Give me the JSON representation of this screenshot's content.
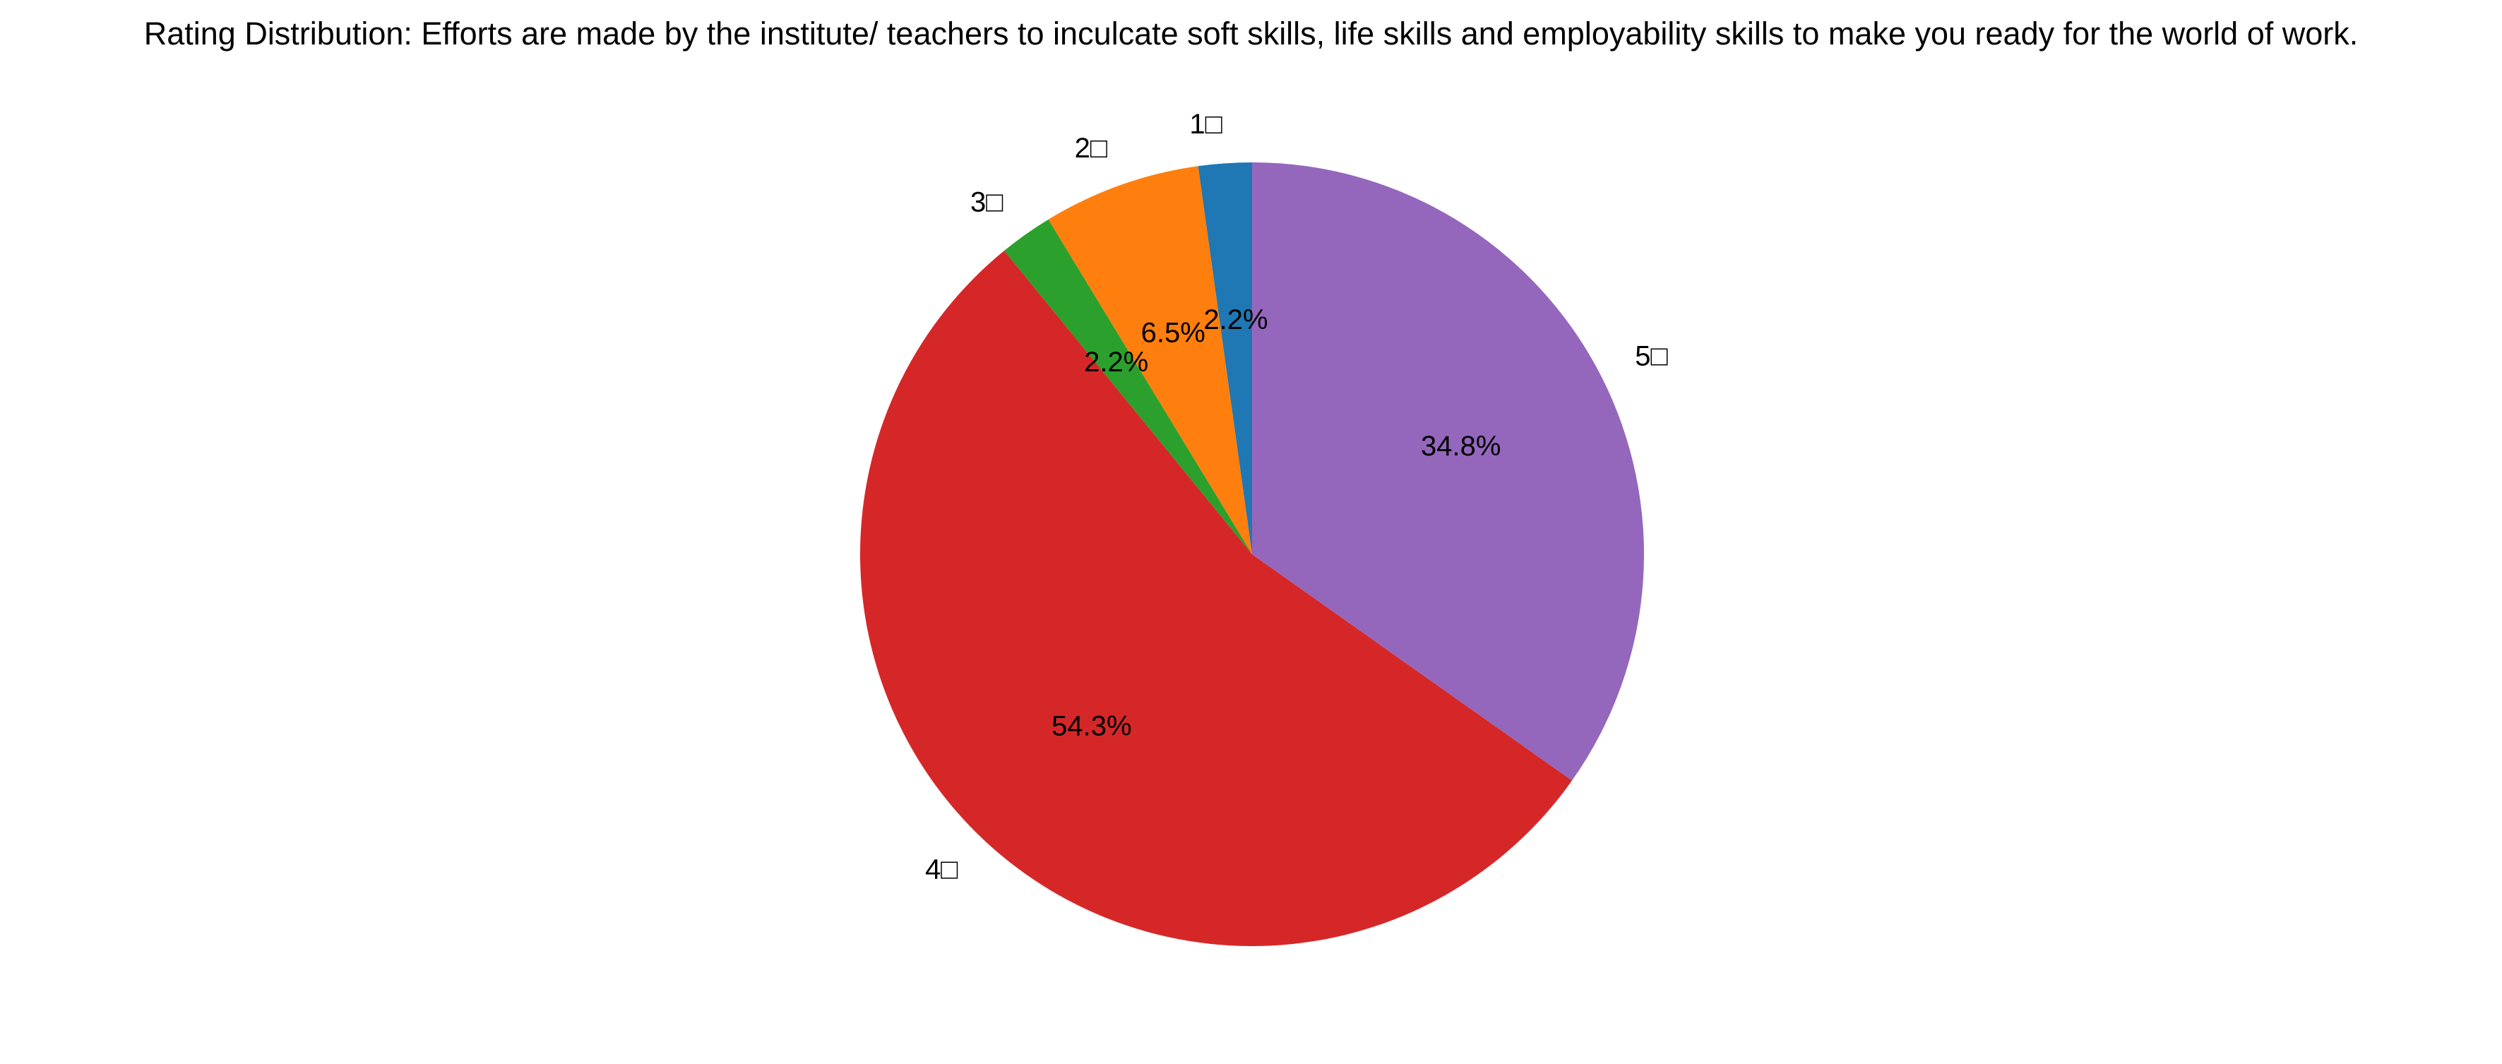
{
  "chart_data": {
    "type": "pie",
    "title": "Rating Distribution: Efforts are made by the institute/ teachers to inculcate soft skills, life skills and employability skills to make you ready for the world of work.",
    "slices": [
      {
        "label": "1□",
        "percent_label": "2.2%",
        "value": 2.2,
        "color": "#1f77b4"
      },
      {
        "label": "2□",
        "percent_label": "6.5%",
        "value": 6.5,
        "color": "#ff7f0e"
      },
      {
        "label": "3□",
        "percent_label": "2.2%",
        "value": 2.2,
        "color": "#2ca02c"
      },
      {
        "label": "4□",
        "percent_label": "54.3%",
        "value": 54.3,
        "color": "#d62728"
      },
      {
        "label": "5□",
        "percent_label": "34.8%",
        "value": 34.8,
        "color": "#9467bd"
      }
    ],
    "start_angle_deg": 90,
    "direction": "counterclockwise"
  }
}
